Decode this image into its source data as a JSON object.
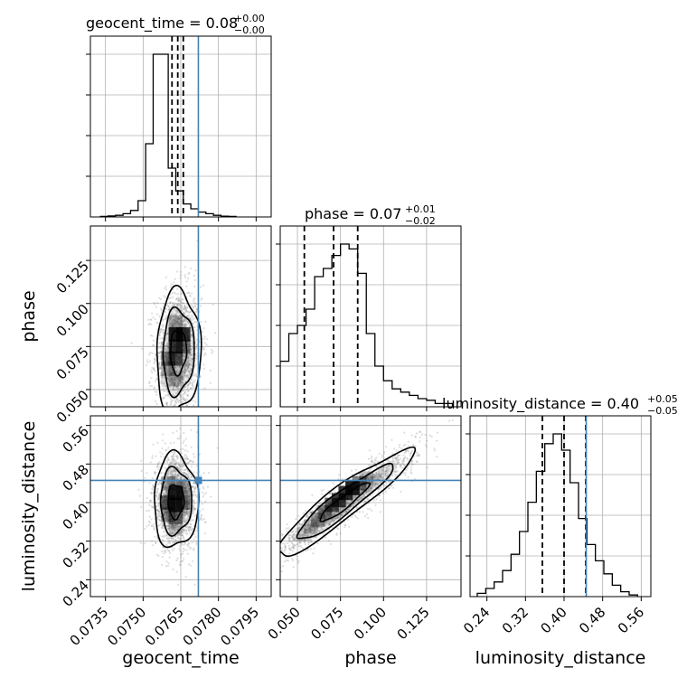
{
  "chart_data": {
    "type": "corner",
    "parameters": [
      "geocent_time",
      "phase",
      "luminosity_distance"
    ],
    "axis_labels": [
      "geocent_time",
      "phase",
      "luminosity_distance"
    ],
    "ranges": [
      [
        0.0729,
        0.0801
      ],
      [
        0.04,
        0.145
      ],
      [
        0.205,
        0.58
      ]
    ],
    "ticks": [
      [
        0.0735,
        0.075,
        0.0765,
        0.078,
        0.0795
      ],
      [
        0.05,
        0.075,
        0.1,
        0.125
      ],
      [
        0.24,
        0.32,
        0.4,
        0.48,
        0.56
      ]
    ],
    "tick_labels": [
      [
        "0.0735",
        "0.0750",
        "0.0765",
        "0.0780",
        "0.0795"
      ],
      [
        "0.050",
        "0.075",
        "0.100",
        "0.125"
      ],
      [
        "0.24",
        "0.32",
        "0.40",
        "0.48",
        "0.56"
      ]
    ],
    "titles": [
      {
        "text": "geocent_time = 0.08",
        "sup": "+0.00",
        "sub": "−0.00"
      },
      {
        "text": "phase = 0.07",
        "sup": "+0.01",
        "sub": "−0.02"
      },
      {
        "text": "luminosity_distance = 0.40",
        "sup": "+0.05",
        "sub": "−0.05"
      }
    ],
    "truths": [
      0.0772,
      null,
      0.446
    ],
    "quantiles": [
      [
        0.07615,
        0.07638,
        0.0766
      ],
      [
        0.054,
        0.071,
        0.085
      ],
      [
        0.355,
        0.4,
        0.445
      ]
    ],
    "histograms": [
      {
        "edges_start": 0.0733,
        "bin_width": 0.0003,
        "counts": [
          0.3,
          0.6,
          1,
          2,
          4,
          10,
          45,
          100,
          100,
          30,
          16,
          8,
          5,
          3,
          2,
          1,
          0.5,
          0.3
        ]
      },
      {
        "edges_start": 0.04,
        "bin_width": 0.005,
        "counts": [
          28,
          45,
          50,
          60,
          80,
          85,
          93,
          100,
          97,
          82,
          45,
          25,
          16,
          11,
          9,
          7,
          5,
          4,
          2,
          2
        ]
      },
      {
        "edges_start": 0.22,
        "bin_width": 0.0175,
        "counts": [
          2,
          5,
          9,
          16,
          26,
          40,
          58,
          77,
          94,
          100,
          90,
          70,
          48,
          32,
          22,
          14,
          7,
          3,
          1
        ]
      }
    ],
    "panels_2d": [
      {
        "x_param": 0,
        "y_param": 1,
        "center": [
          0.0764,
          0.072
        ],
        "sigma": [
          0.0004,
          0.016
        ],
        "rho": 0.05,
        "density_cells": [
          [
            0.0763,
            0.082,
            1.0
          ],
          [
            0.0766,
            0.082,
            0.9
          ],
          [
            0.0763,
            0.075,
            0.85
          ],
          [
            0.076,
            0.068,
            0.55
          ],
          [
            0.0763,
            0.068,
            0.7
          ],
          [
            0.076,
            0.062,
            0.35
          ],
          [
            0.0766,
            0.075,
            0.45
          ],
          [
            0.076,
            0.056,
            0.15
          ],
          [
            0.0763,
            0.056,
            0.2
          ],
          [
            0.0763,
            0.089,
            0.3
          ]
        ]
      },
      {
        "x_param": 0,
        "y_param": 2,
        "center": [
          0.0763,
          0.403
        ],
        "sigma": [
          0.0004,
          0.044
        ],
        "rho": 0.0,
        "density_cells": [
          [
            0.0763,
            0.42,
            1.0
          ],
          [
            0.0763,
            0.395,
            0.95
          ],
          [
            0.076,
            0.4,
            0.7
          ],
          [
            0.0766,
            0.4,
            0.55
          ],
          [
            0.076,
            0.375,
            0.45
          ],
          [
            0.0763,
            0.37,
            0.5
          ],
          [
            0.0766,
            0.43,
            0.35
          ],
          [
            0.076,
            0.44,
            0.3
          ],
          [
            0.0763,
            0.345,
            0.2
          ]
        ]
      },
      {
        "x_param": 1,
        "y_param": 2,
        "center": [
          0.077,
          0.4
        ],
        "sigma": [
          0.018,
          0.05
        ],
        "rho": 0.93,
        "density_cells": [
          [
            0.082,
            0.43,
            1.0
          ],
          [
            0.078,
            0.42,
            0.9
          ],
          [
            0.074,
            0.405,
            0.85
          ],
          [
            0.07,
            0.395,
            0.7
          ],
          [
            0.086,
            0.44,
            0.55
          ],
          [
            0.066,
            0.38,
            0.5
          ],
          [
            0.062,
            0.365,
            0.35
          ],
          [
            0.09,
            0.45,
            0.3
          ],
          [
            0.058,
            0.35,
            0.25
          ],
          [
            0.054,
            0.335,
            0.15
          ]
        ]
      }
    ]
  }
}
